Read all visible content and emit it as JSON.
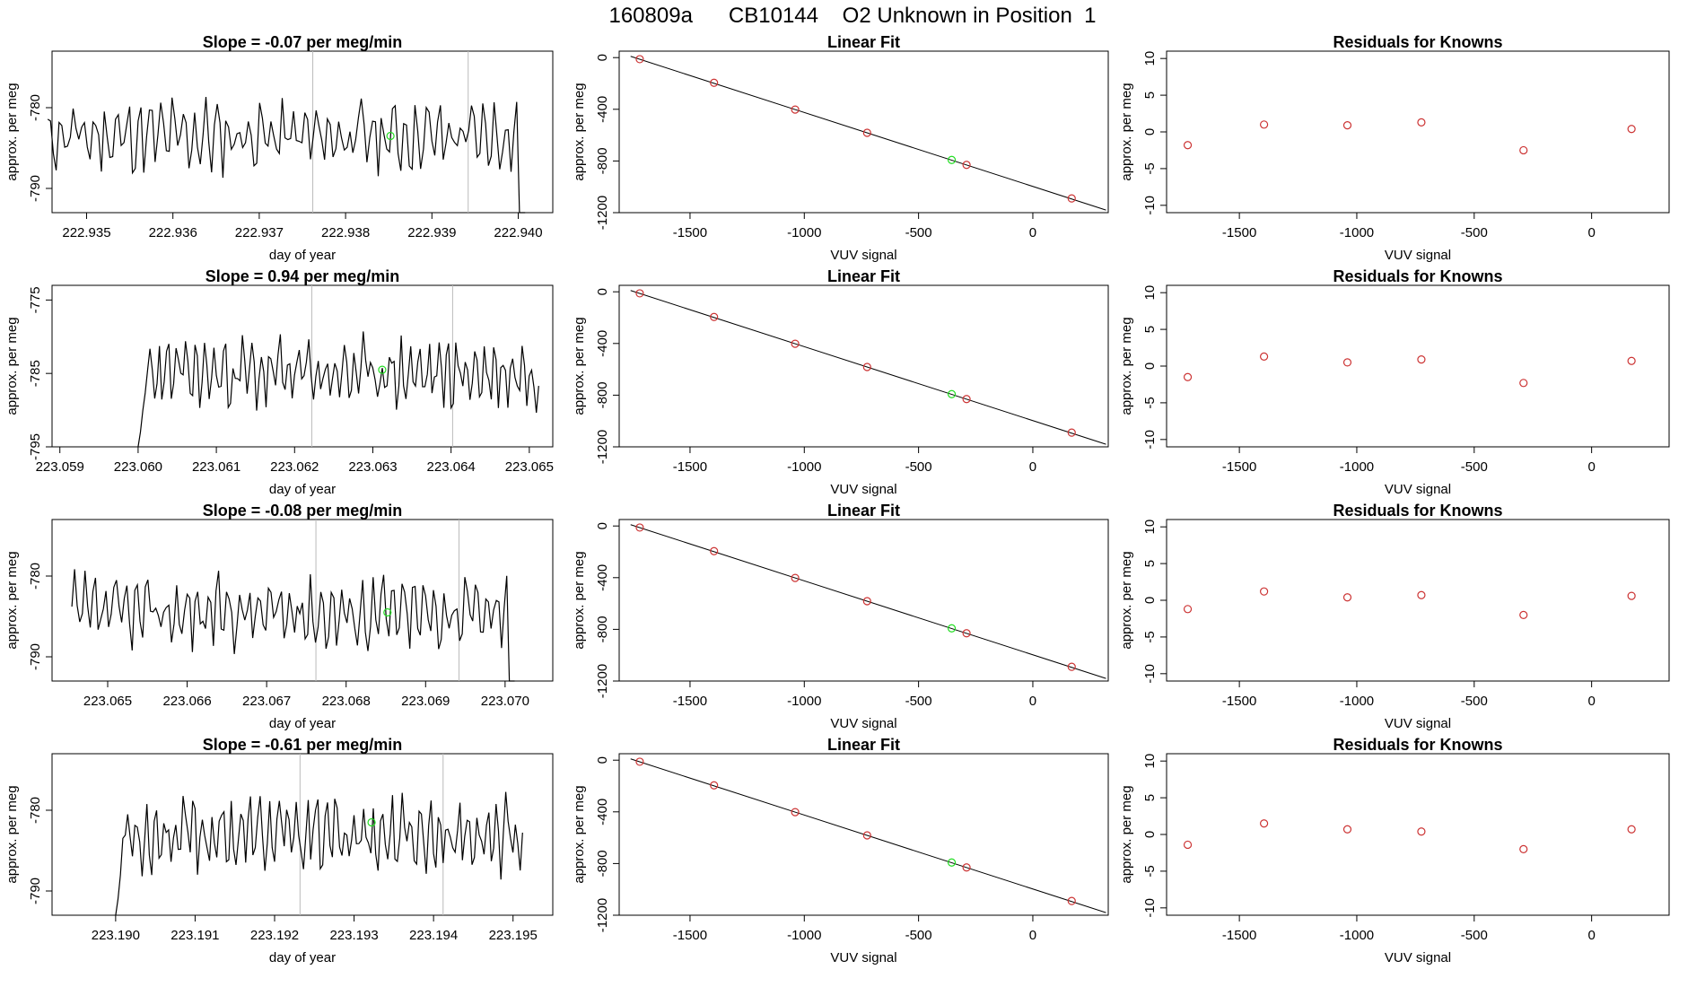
{
  "header": {
    "title": "160809a      CB10144    O2 Unknown in Position  1"
  },
  "colors": {
    "trace": "#000000",
    "unknown": "#22dd22",
    "known": "#cc3333",
    "vline": "#bbbbbb"
  },
  "chart_data": [
    {
      "type": "line",
      "row": 0,
      "title": "Slope =  -0.07  per meg/min",
      "xlabel": "day of year",
      "ylabel": "approx. per meg",
      "xlim": [
        222.9346,
        222.9404
      ],
      "ylim": [
        -793,
        -773
      ],
      "xticks": [
        "222.935",
        "222.936",
        "222.937",
        "222.938",
        "222.939",
        "222.940"
      ],
      "yticks": [
        "-780",
        "-790"
      ],
      "x_start": 222.93455,
      "x_end": 222.94008,
      "y_base": -783.5,
      "y_amp": 3.2,
      "seed": 11,
      "marked_x": [
        222.93762,
        222.93942
      ],
      "unknown_point": {
        "x": 222.93852,
        "y": -783.5
      },
      "tail": "down",
      "head": "none"
    },
    {
      "type": "line",
      "row": 0,
      "title": "Linear Fit",
      "xlabel": "VUV signal",
      "ylabel": "approx. per meg",
      "xlim": [
        -1810,
        330
      ],
      "ylim": [
        -1200,
        50
      ],
      "xticks": [
        "-1500",
        "-1000",
        "-500",
        "0"
      ],
      "yticks": [
        "0",
        "-400",
        "-800",
        "-1200"
      ],
      "known_points": [
        {
          "x": -1720,
          "y": -12
        },
        {
          "x": -1395,
          "y": -195
        },
        {
          "x": -1040,
          "y": -402
        },
        {
          "x": -725,
          "y": -582
        },
        {
          "x": -290,
          "y": -830
        },
        {
          "x": 170,
          "y": -1090
        }
      ],
      "unknown_point": {
        "x": -355,
        "y": -792
      },
      "fit_line": {
        "x": [
          -1760,
          320
        ],
        "y": [
          10,
          -1180
        ]
      }
    },
    {
      "type": "scatter",
      "row": 0,
      "title": "Residuals for Knowns",
      "xlabel": "VUV signal",
      "ylabel": "approx. per meg",
      "xlim": [
        -1810,
        330
      ],
      "ylim": [
        -11,
        11
      ],
      "xticks": [
        "-1500",
        "-1000",
        "-500",
        "0"
      ],
      "yticks": [
        "10",
        "5",
        "0",
        "-5",
        "-10"
      ],
      "points": [
        {
          "x": -1720,
          "y": -1.8
        },
        {
          "x": -1395,
          "y": 1.0
        },
        {
          "x": -1040,
          "y": 0.9
        },
        {
          "x": -725,
          "y": 1.3
        },
        {
          "x": -290,
          "y": -2.5
        },
        {
          "x": 170,
          "y": 0.4
        }
      ]
    },
    {
      "type": "line",
      "row": 1,
      "title": "Slope =  0.94  per meg/min",
      "xlabel": "day of year",
      "ylabel": "approx. per meg",
      "xlim": [
        223.0589,
        223.0653
      ],
      "ylim": [
        -795,
        -773
      ],
      "xticks": [
        "223.059",
        "223.060",
        "223.061",
        "223.062",
        "223.063",
        "223.064",
        "223.065"
      ],
      "yticks": [
        "-775",
        "-785",
        "-795"
      ],
      "x_start": 223.06,
      "x_end": 223.06512,
      "y_base": -785,
      "y_amp": 3.5,
      "seed": 23,
      "marked_x": [
        223.06222,
        223.06402
      ],
      "unknown_point": {
        "x": 223.06312,
        "y": -784.5
      },
      "tail": "none",
      "head": "up"
    },
    {
      "type": "line",
      "row": 1,
      "title": "Linear Fit",
      "xlabel": "VUV signal",
      "ylabel": "approx. per meg",
      "xlim": [
        -1810,
        330
      ],
      "ylim": [
        -1200,
        50
      ],
      "xticks": [
        "-1500",
        "-1000",
        "-500",
        "0"
      ],
      "yticks": [
        "0",
        "-400",
        "-800",
        "-1200"
      ],
      "known_points": [
        {
          "x": -1720,
          "y": -12
        },
        {
          "x": -1395,
          "y": -195
        },
        {
          "x": -1040,
          "y": -402
        },
        {
          "x": -725,
          "y": -582
        },
        {
          "x": -290,
          "y": -830
        },
        {
          "x": 170,
          "y": -1090
        }
      ],
      "unknown_point": {
        "x": -355,
        "y": -792
      },
      "fit_line": {
        "x": [
          -1760,
          320
        ],
        "y": [
          10,
          -1180
        ]
      }
    },
    {
      "type": "scatter",
      "row": 1,
      "title": "Residuals for Knowns",
      "xlabel": "VUV signal",
      "ylabel": "approx. per meg",
      "xlim": [
        -1810,
        330
      ],
      "ylim": [
        -11,
        11
      ],
      "xticks": [
        "-1500",
        "-1000",
        "-500",
        "0"
      ],
      "yticks": [
        "10",
        "5",
        "0",
        "-5",
        "-10"
      ],
      "points": [
        {
          "x": -1720,
          "y": -1.5
        },
        {
          "x": -1395,
          "y": 1.3
        },
        {
          "x": -1040,
          "y": 0.5
        },
        {
          "x": -725,
          "y": 0.9
        },
        {
          "x": -290,
          "y": -2.3
        },
        {
          "x": 170,
          "y": 0.7
        }
      ]
    },
    {
      "type": "line",
      "row": 2,
      "title": "Slope =  -0.08  per meg/min",
      "xlabel": "day of year",
      "ylabel": "approx. per meg",
      "xlim": [
        223.0643,
        223.0706
      ],
      "ylim": [
        -793,
        -773
      ],
      "xticks": [
        "223.065",
        "223.066",
        "223.067",
        "223.068",
        "223.069",
        "223.070"
      ],
      "yticks": [
        "-780",
        "-790"
      ],
      "x_start": 223.06455,
      "x_end": 223.07012,
      "y_base": -784.5,
      "y_amp": 3.2,
      "seed": 37,
      "marked_x": [
        223.06762,
        223.06942
      ],
      "unknown_point": {
        "x": 223.06852,
        "y": -784.5
      },
      "tail": "down",
      "head": "none"
    },
    {
      "type": "line",
      "row": 2,
      "title": "Linear Fit",
      "xlabel": "VUV signal",
      "ylabel": "approx. per meg",
      "xlim": [
        -1810,
        330
      ],
      "ylim": [
        -1200,
        50
      ],
      "xticks": [
        "-1500",
        "-1000",
        "-500",
        "0"
      ],
      "yticks": [
        "0",
        "-400",
        "-800",
        "-1200"
      ],
      "known_points": [
        {
          "x": -1720,
          "y": -12
        },
        {
          "x": -1395,
          "y": -195
        },
        {
          "x": -1040,
          "y": -402
        },
        {
          "x": -725,
          "y": -582
        },
        {
          "x": -290,
          "y": -830
        },
        {
          "x": 170,
          "y": -1090
        }
      ],
      "unknown_point": {
        "x": -355,
        "y": -792
      },
      "fit_line": {
        "x": [
          -1760,
          320
        ],
        "y": [
          10,
          -1180
        ]
      }
    },
    {
      "type": "scatter",
      "row": 2,
      "title": "Residuals for Knowns",
      "xlabel": "VUV signal",
      "ylabel": "approx. per meg",
      "xlim": [
        -1810,
        330
      ],
      "ylim": [
        -11,
        11
      ],
      "xticks": [
        "-1500",
        "-1000",
        "-500",
        "0"
      ],
      "yticks": [
        "10",
        "5",
        "0",
        "-5",
        "-10"
      ],
      "points": [
        {
          "x": -1720,
          "y": -1.2
        },
        {
          "x": -1395,
          "y": 1.2
        },
        {
          "x": -1040,
          "y": 0.4
        },
        {
          "x": -725,
          "y": 0.7
        },
        {
          "x": -290,
          "y": -2.0
        },
        {
          "x": 170,
          "y": 0.6
        }
      ]
    },
    {
      "type": "line",
      "row": 3,
      "title": "Slope =  -0.61  per meg/min",
      "xlabel": "day of year",
      "ylabel": "approx. per meg",
      "xlim": [
        223.1892,
        223.1955
      ],
      "ylim": [
        -793,
        -773
      ],
      "xticks": [
        "223.190",
        "223.191",
        "223.192",
        "223.193",
        "223.194",
        "223.195"
      ],
      "yticks": [
        "-780",
        "-790"
      ],
      "x_start": 223.19,
      "x_end": 223.19512,
      "y_base": -783,
      "y_amp": 3.3,
      "seed": 53,
      "marked_x": [
        223.19232,
        223.19412
      ],
      "unknown_point": {
        "x": 223.19322,
        "y": -781.5
      },
      "tail": "none",
      "head": "up"
    },
    {
      "type": "line",
      "row": 3,
      "title": "Linear Fit",
      "xlabel": "VUV signal",
      "ylabel": "approx. per meg",
      "xlim": [
        -1810,
        330
      ],
      "ylim": [
        -1200,
        50
      ],
      "xticks": [
        "-1500",
        "-1000",
        "-500",
        "0"
      ],
      "yticks": [
        "0",
        "-400",
        "-800",
        "-1200"
      ],
      "known_points": [
        {
          "x": -1720,
          "y": -12
        },
        {
          "x": -1395,
          "y": -195
        },
        {
          "x": -1040,
          "y": -402
        },
        {
          "x": -725,
          "y": -582
        },
        {
          "x": -290,
          "y": -830
        },
        {
          "x": 170,
          "y": -1090
        }
      ],
      "unknown_point": {
        "x": -355,
        "y": -792
      },
      "fit_line": {
        "x": [
          -1760,
          320
        ],
        "y": [
          10,
          -1180
        ]
      }
    },
    {
      "type": "scatter",
      "row": 3,
      "title": "Residuals for Knowns",
      "xlabel": "VUV signal",
      "ylabel": "approx. per meg",
      "xlim": [
        -1810,
        330
      ],
      "ylim": [
        -11,
        11
      ],
      "xticks": [
        "-1500",
        "-1000",
        "-500",
        "0"
      ],
      "yticks": [
        "10",
        "5",
        "0",
        "-5",
        "-10"
      ],
      "points": [
        {
          "x": -1720,
          "y": -1.4
        },
        {
          "x": -1395,
          "y": 1.5
        },
        {
          "x": -1040,
          "y": 0.7
        },
        {
          "x": -725,
          "y": 0.4
        },
        {
          "x": -290,
          "y": -2.0
        },
        {
          "x": 170,
          "y": 0.7
        }
      ]
    }
  ]
}
